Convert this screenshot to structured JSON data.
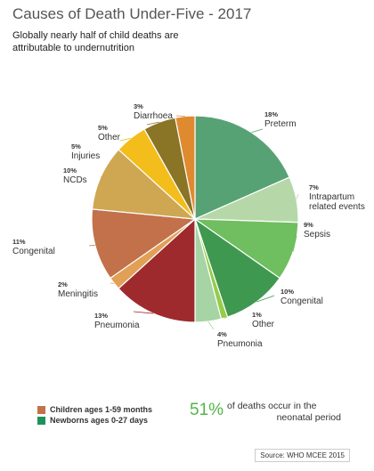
{
  "title": "Causes of Death Under-Five - 2017",
  "subtitle": "Globally nearly half of child deaths are attributable to undernutrition",
  "chart_data": {
    "type": "pie",
    "slices": [
      {
        "pct": "18%",
        "value": 18,
        "label": "Preterm",
        "group": "newborn",
        "color": "#57a274"
      },
      {
        "pct": "7%",
        "value": 7,
        "label": "Intrapartum related events",
        "group": "newborn",
        "color": "#b6d8a9"
      },
      {
        "pct": "9%",
        "value": 9,
        "label": "Sepsis",
        "group": "newborn",
        "color": "#6fbe5f"
      },
      {
        "pct": "10%",
        "value": 10,
        "label": "Congenital",
        "group": "newborn",
        "color": "#3f9850"
      },
      {
        "pct": "1%",
        "value": 1,
        "label": "Other",
        "group": "newborn",
        "color": "#95cc4a"
      },
      {
        "pct": "4%",
        "value": 4,
        "label": "Pneumonia",
        "group": "newborn",
        "color": "#a6d4a4"
      },
      {
        "pct": "13%",
        "value": 13,
        "label": "Pneumonia",
        "group": "child",
        "color": "#9e2a2e"
      },
      {
        "pct": "2%",
        "value": 2,
        "label": "Meningitis",
        "group": "child",
        "color": "#e1a056"
      },
      {
        "pct": "11%",
        "value": 11,
        "label": "Congenital",
        "group": "child",
        "color": "#c3714a"
      },
      {
        "pct": "10%",
        "value": 10,
        "label": "NCDs",
        "group": "child",
        "color": "#cfa752"
      },
      {
        "pct": "5%",
        "value": 5,
        "label": "Injuries",
        "group": "child",
        "color": "#f3bd1c"
      },
      {
        "pct": "5%",
        "value": 5,
        "label": "Other",
        "group": "child",
        "color": "#8a7426"
      },
      {
        "pct": "3%",
        "value": 3,
        "label": "Diarrhoea",
        "group": "child",
        "color": "#e08a30"
      }
    ]
  },
  "legend": {
    "children": {
      "label": "Children ages 1-59 months",
      "color": "#c3714a"
    },
    "newborns": {
      "label": "Newborns ages 0-27 days",
      "color": "#21915a"
    }
  },
  "stat": {
    "value": "51%",
    "text_line1": "of deaths occur in the",
    "text_line2": "neonatal period"
  },
  "source": "Source: WHO MCEE 2015"
}
